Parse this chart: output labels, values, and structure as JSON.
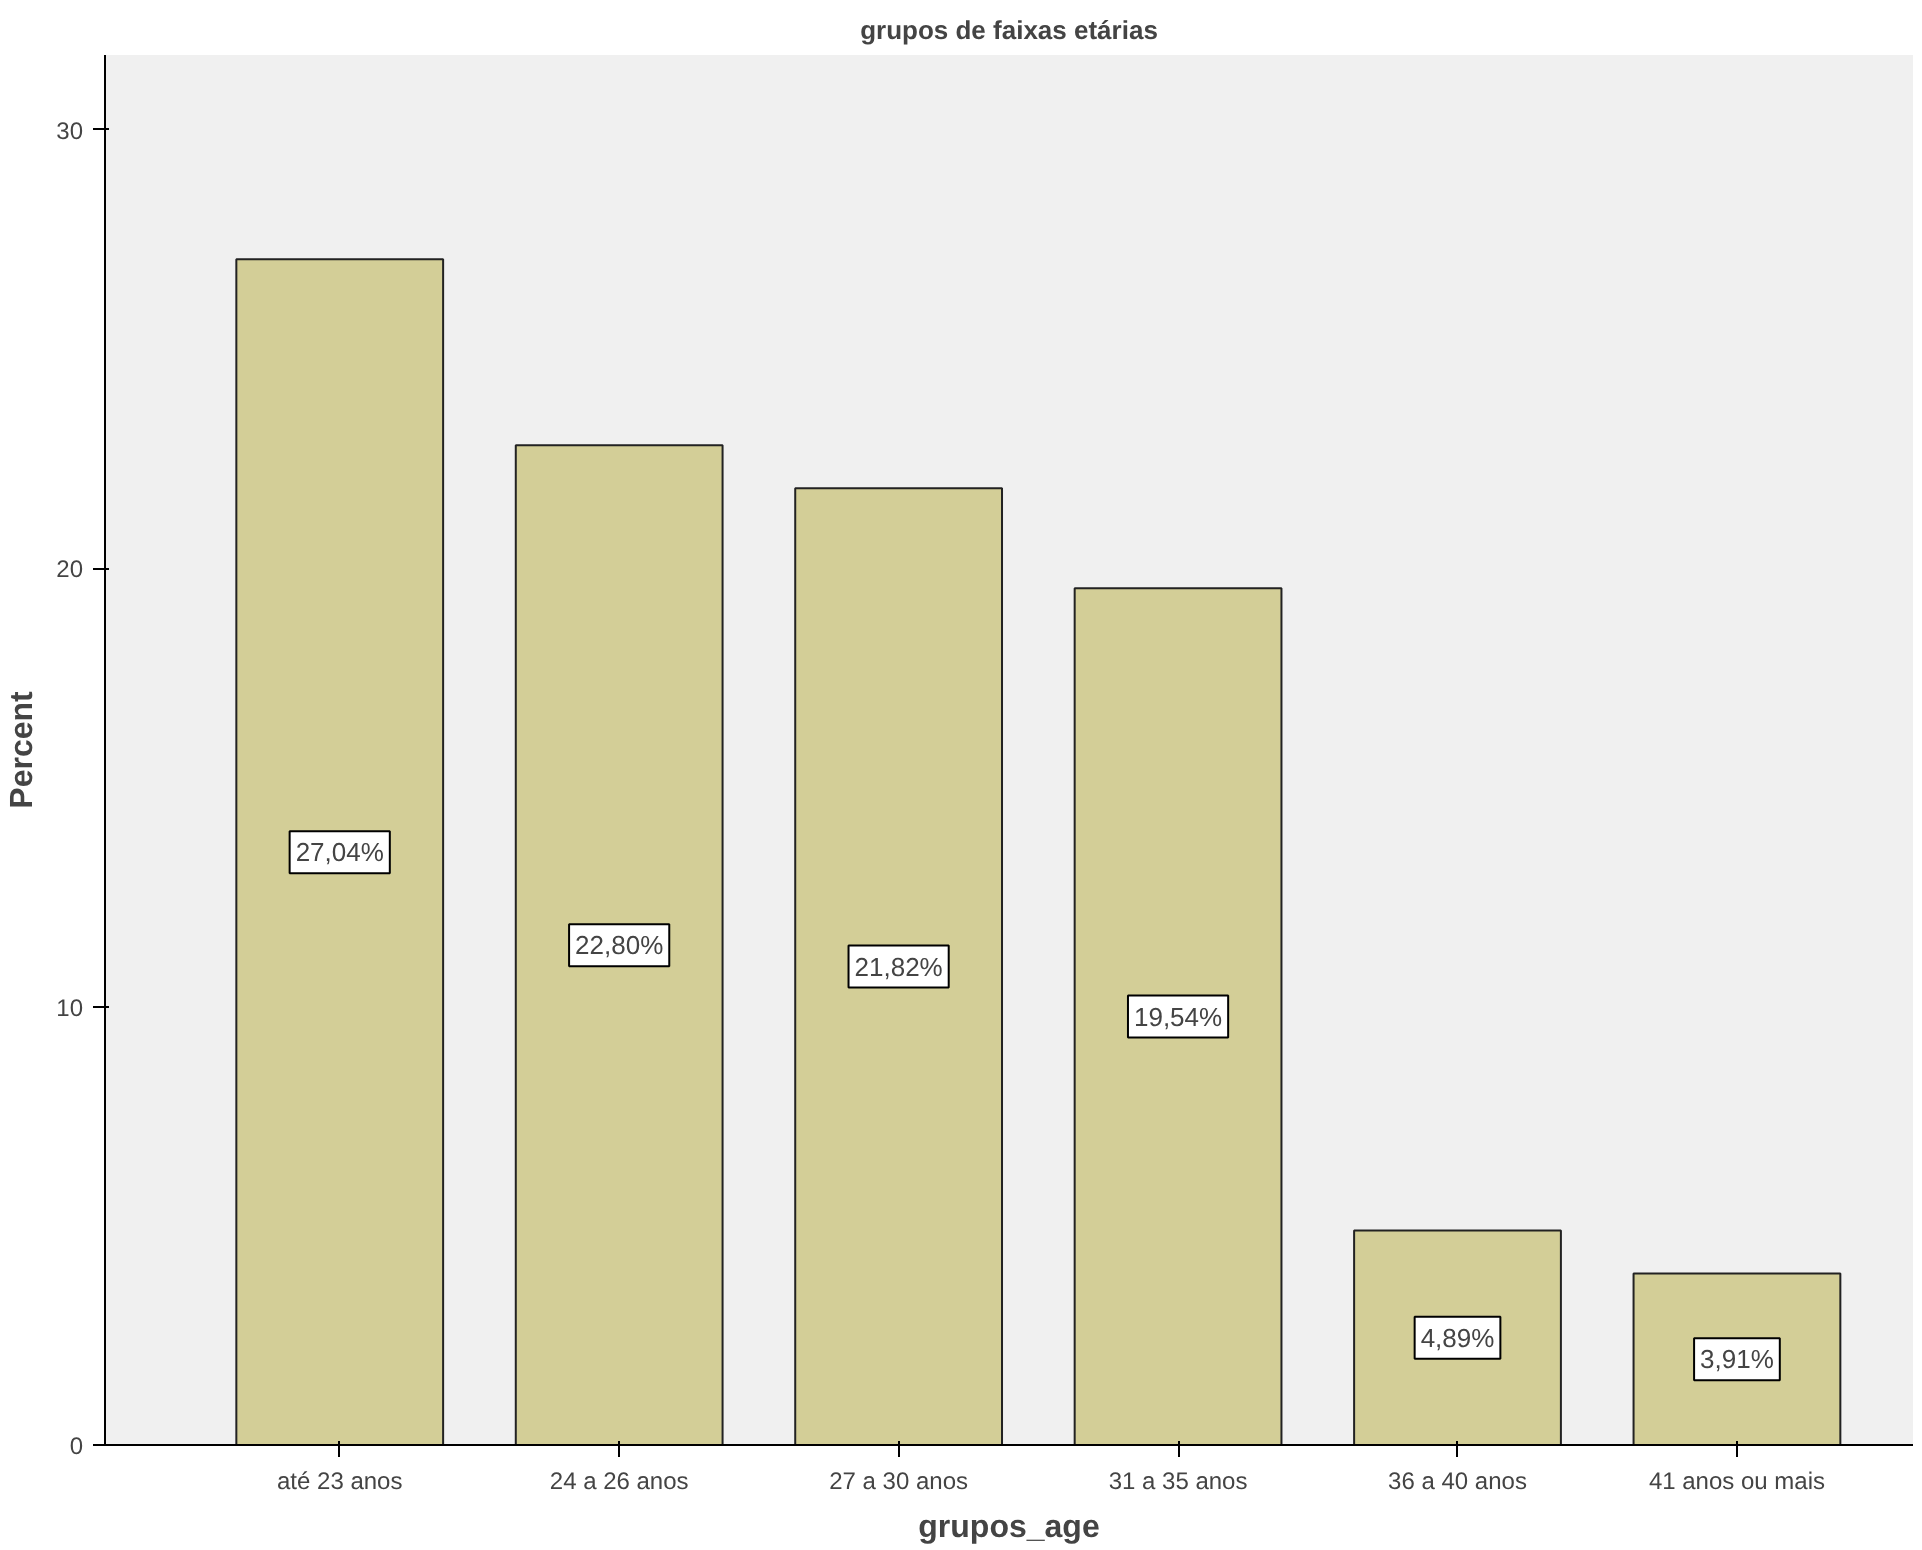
{
  "chart_data": {
    "type": "bar",
    "title": "grupos de faixas etárias",
    "xlabel": "grupos_age",
    "ylabel": "Percent",
    "categories": [
      "até 23 anos",
      "24 a 26 anos",
      "27 a 30 anos",
      "31 a 35 anos",
      "36 a 40 anos",
      "41 anos ou mais"
    ],
    "values": [
      27.04,
      22.8,
      21.82,
      19.54,
      4.89,
      3.91
    ],
    "value_labels": [
      "27,04%",
      "22,80%",
      "21,82%",
      "19,54%",
      "4,89%",
      "3,91%"
    ],
    "color": "#d3ce97",
    "ylim": [
      0,
      31.7
    ],
    "yticks": [
      0,
      10,
      20,
      30
    ],
    "grid": false
  }
}
